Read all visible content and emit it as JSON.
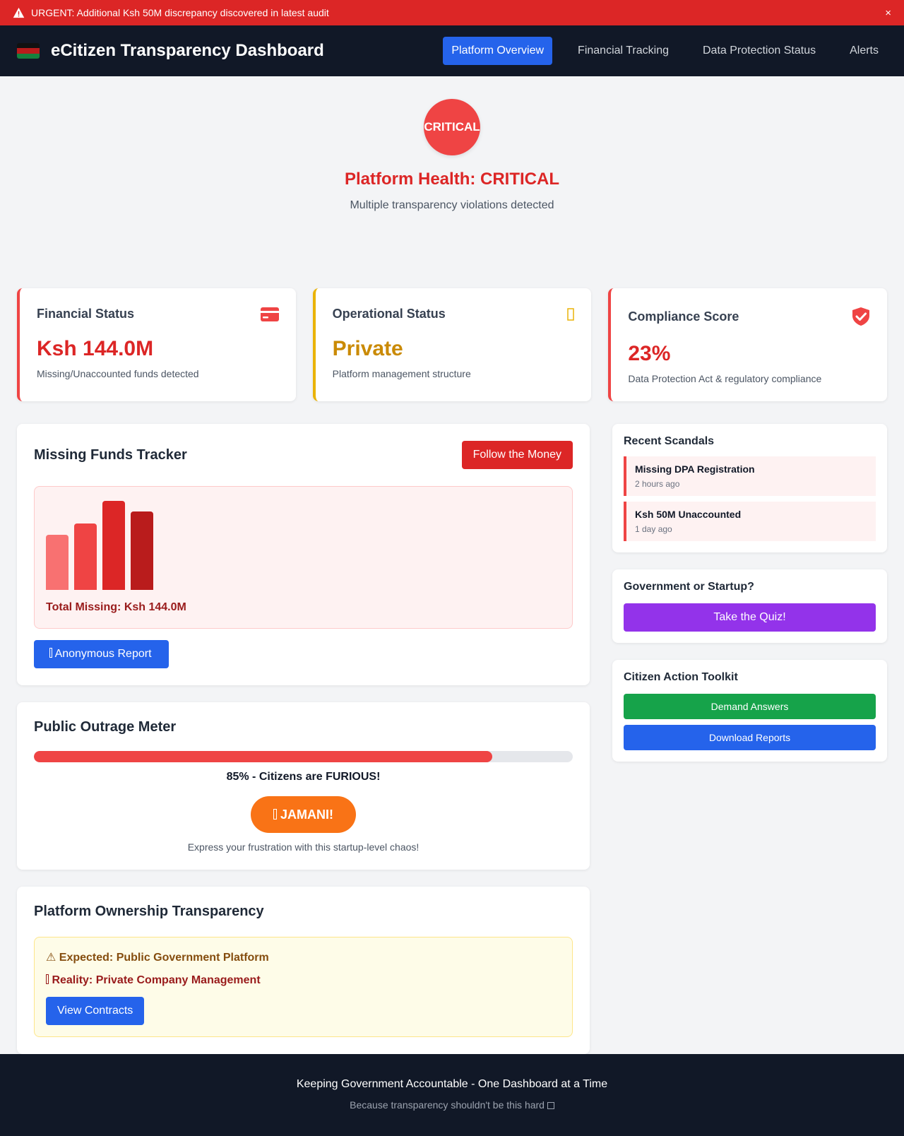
{
  "alert": {
    "message": "URGENT: Additional Ksh 50M discrepancy discovered in latest audit",
    "icon": "warning-icon",
    "close_label": "×"
  },
  "header": {
    "title": "eCitizen Transparency Dashboard",
    "flag_icon": "kenya-flag-icon",
    "nav": [
      {
        "label": "Platform Overview",
        "active": true
      },
      {
        "label": "Financial Tracking",
        "active": false
      },
      {
        "label": "Data Protection Status",
        "active": false
      },
      {
        "label": "Alerts",
        "active": false
      }
    ]
  },
  "health": {
    "badge": "CRITICAL",
    "title": "Platform Health: CRITICAL",
    "subtitle": "Multiple transparency violations detected"
  },
  "stats": [
    {
      "title": "Financial Status",
      "value": "Ksh 144.0M",
      "desc": "Missing/Unaccounted funds detected",
      "icon": "credit-card-icon",
      "color": "#dc2626"
    },
    {
      "title": "Operational Status",
      "value": "Private",
      "desc": "Platform management structure",
      "icon": "building-icon",
      "color": "#ca8a04"
    },
    {
      "title": "Compliance Score",
      "value": "23%",
      "desc": "Data Protection Act & regulatory compliance",
      "icon": "shield-check-icon",
      "color": "#dc2626"
    }
  ],
  "tracker": {
    "title": "Missing Funds Tracker",
    "follow_label": "Follow the Money",
    "total": "Total Missing: Ksh 144.0M",
    "bar_levels": [
      0.6,
      0.72,
      0.97,
      0.85
    ],
    "bar_colors": [
      "#f87171",
      "#ef4444",
      "#dc2626",
      "#b91c1c"
    ],
    "report_label": " Anonymous Report"
  },
  "outrage": {
    "title": "Public Outrage Meter",
    "level": 0.85,
    "text": "85% - Citizens are FURIOUS!",
    "button": " JAMANI!",
    "hint": "Express your frustration with this startup-level chaos!"
  },
  "ownership": {
    "title": "Platform Ownership Transparency",
    "expected": "⚠ Expected: Public Government Platform",
    "reality": " Reality: Private Company Management",
    "button": "View Contracts"
  },
  "sidebar": {
    "scandals_title": "Recent Scandals",
    "scandals": [
      {
        "name": "Missing DPA Registration",
        "time": "2 hours ago"
      },
      {
        "name": "Ksh 50M Unaccounted",
        "time": "1 day ago"
      }
    ],
    "quiz_title": "Government or Startup?",
    "quiz_button": "Take the Quiz!",
    "toolkit_title": "Citizen Action Toolkit",
    "toolkit_demand": "Demand Answers",
    "toolkit_download": "Download Reports"
  },
  "footer": {
    "main": "Keeping Government Accountable - One Dashboard at a Time",
    "sub": "Because transparency shouldn't be this hard "
  },
  "colors": {
    "alert": "#dc2626",
    "header": "#111827",
    "primary": "#2563eb",
    "danger": "#ef4444",
    "warning": "#eab308",
    "purple": "#9333ea",
    "green": "#16a34a",
    "orange": "#f97316"
  }
}
